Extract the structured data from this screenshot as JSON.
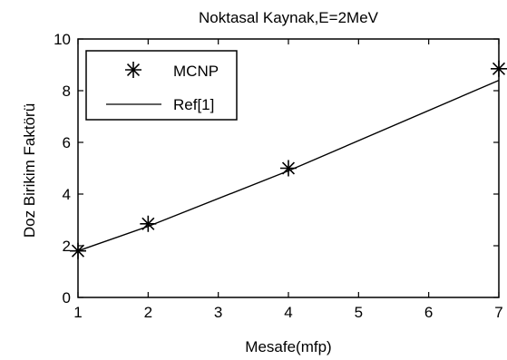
{
  "chart_data": {
    "type": "line",
    "title": "Noktasal Kaynak,E=2MeV",
    "xlabel": "Mesafe(mfp)",
    "ylabel": "Doz Birikim Faktörü",
    "xlim": [
      1,
      7
    ],
    "ylim": [
      0,
      10
    ],
    "xticks": [
      1,
      2,
      3,
      4,
      5,
      6,
      7
    ],
    "yticks": [
      0,
      2,
      4,
      6,
      8,
      10
    ],
    "grid": false,
    "legend_position": "top-left",
    "series": [
      {
        "name": "MCNP",
        "style": "markers",
        "marker": "asterisk",
        "x": [
          1,
          2,
          4,
          7
        ],
        "y": [
          1.8,
          2.85,
          5.0,
          8.85
        ]
      },
      {
        "name": "Ref[1]",
        "style": "line",
        "x": [
          1,
          2,
          4,
          7
        ],
        "y": [
          1.8,
          2.75,
          4.9,
          8.4
        ]
      }
    ]
  }
}
